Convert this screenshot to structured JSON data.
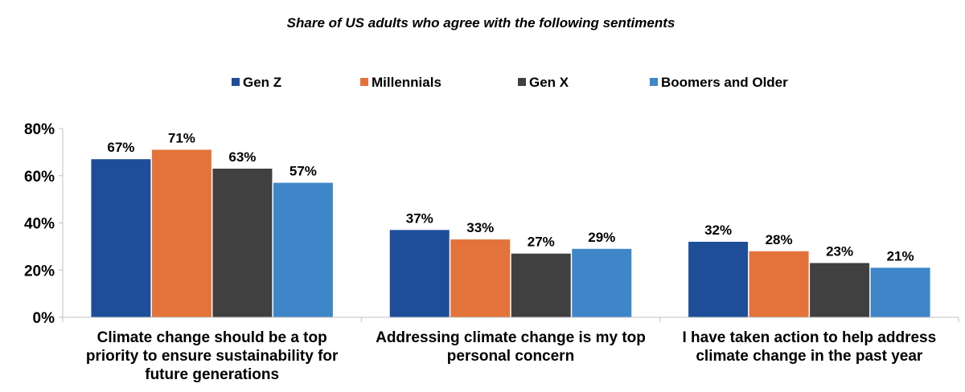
{
  "chart_data": {
    "type": "bar",
    "title": "Share of US adults who agree with the following sentiments",
    "categories": [
      [
        "Climate change should be a top",
        "priority to ensure sustainability for",
        "future generations"
      ],
      [
        "Addressing climate change is my top",
        "personal concern"
      ],
      [
        "I have taken action to help address",
        "climate change in the past year"
      ]
    ],
    "series": [
      {
        "name": "Gen Z",
        "color": "#1F4E99",
        "values": [
          67,
          37,
          32
        ]
      },
      {
        "name": "Millennials",
        "color": "#E3733A",
        "values": [
          71,
          33,
          28
        ]
      },
      {
        "name": "Gen X",
        "color": "#404040",
        "values": [
          63,
          27,
          23
        ]
      },
      {
        "name": "Boomers and Older",
        "color": "#3F86C9",
        "values": [
          57,
          29,
          21
        ]
      }
    ],
    "ylim": [
      0,
      80
    ],
    "yticks": [
      0,
      20,
      40,
      60,
      80
    ],
    "value_suffix": "%",
    "legend_position": "top",
    "grid": false
  }
}
